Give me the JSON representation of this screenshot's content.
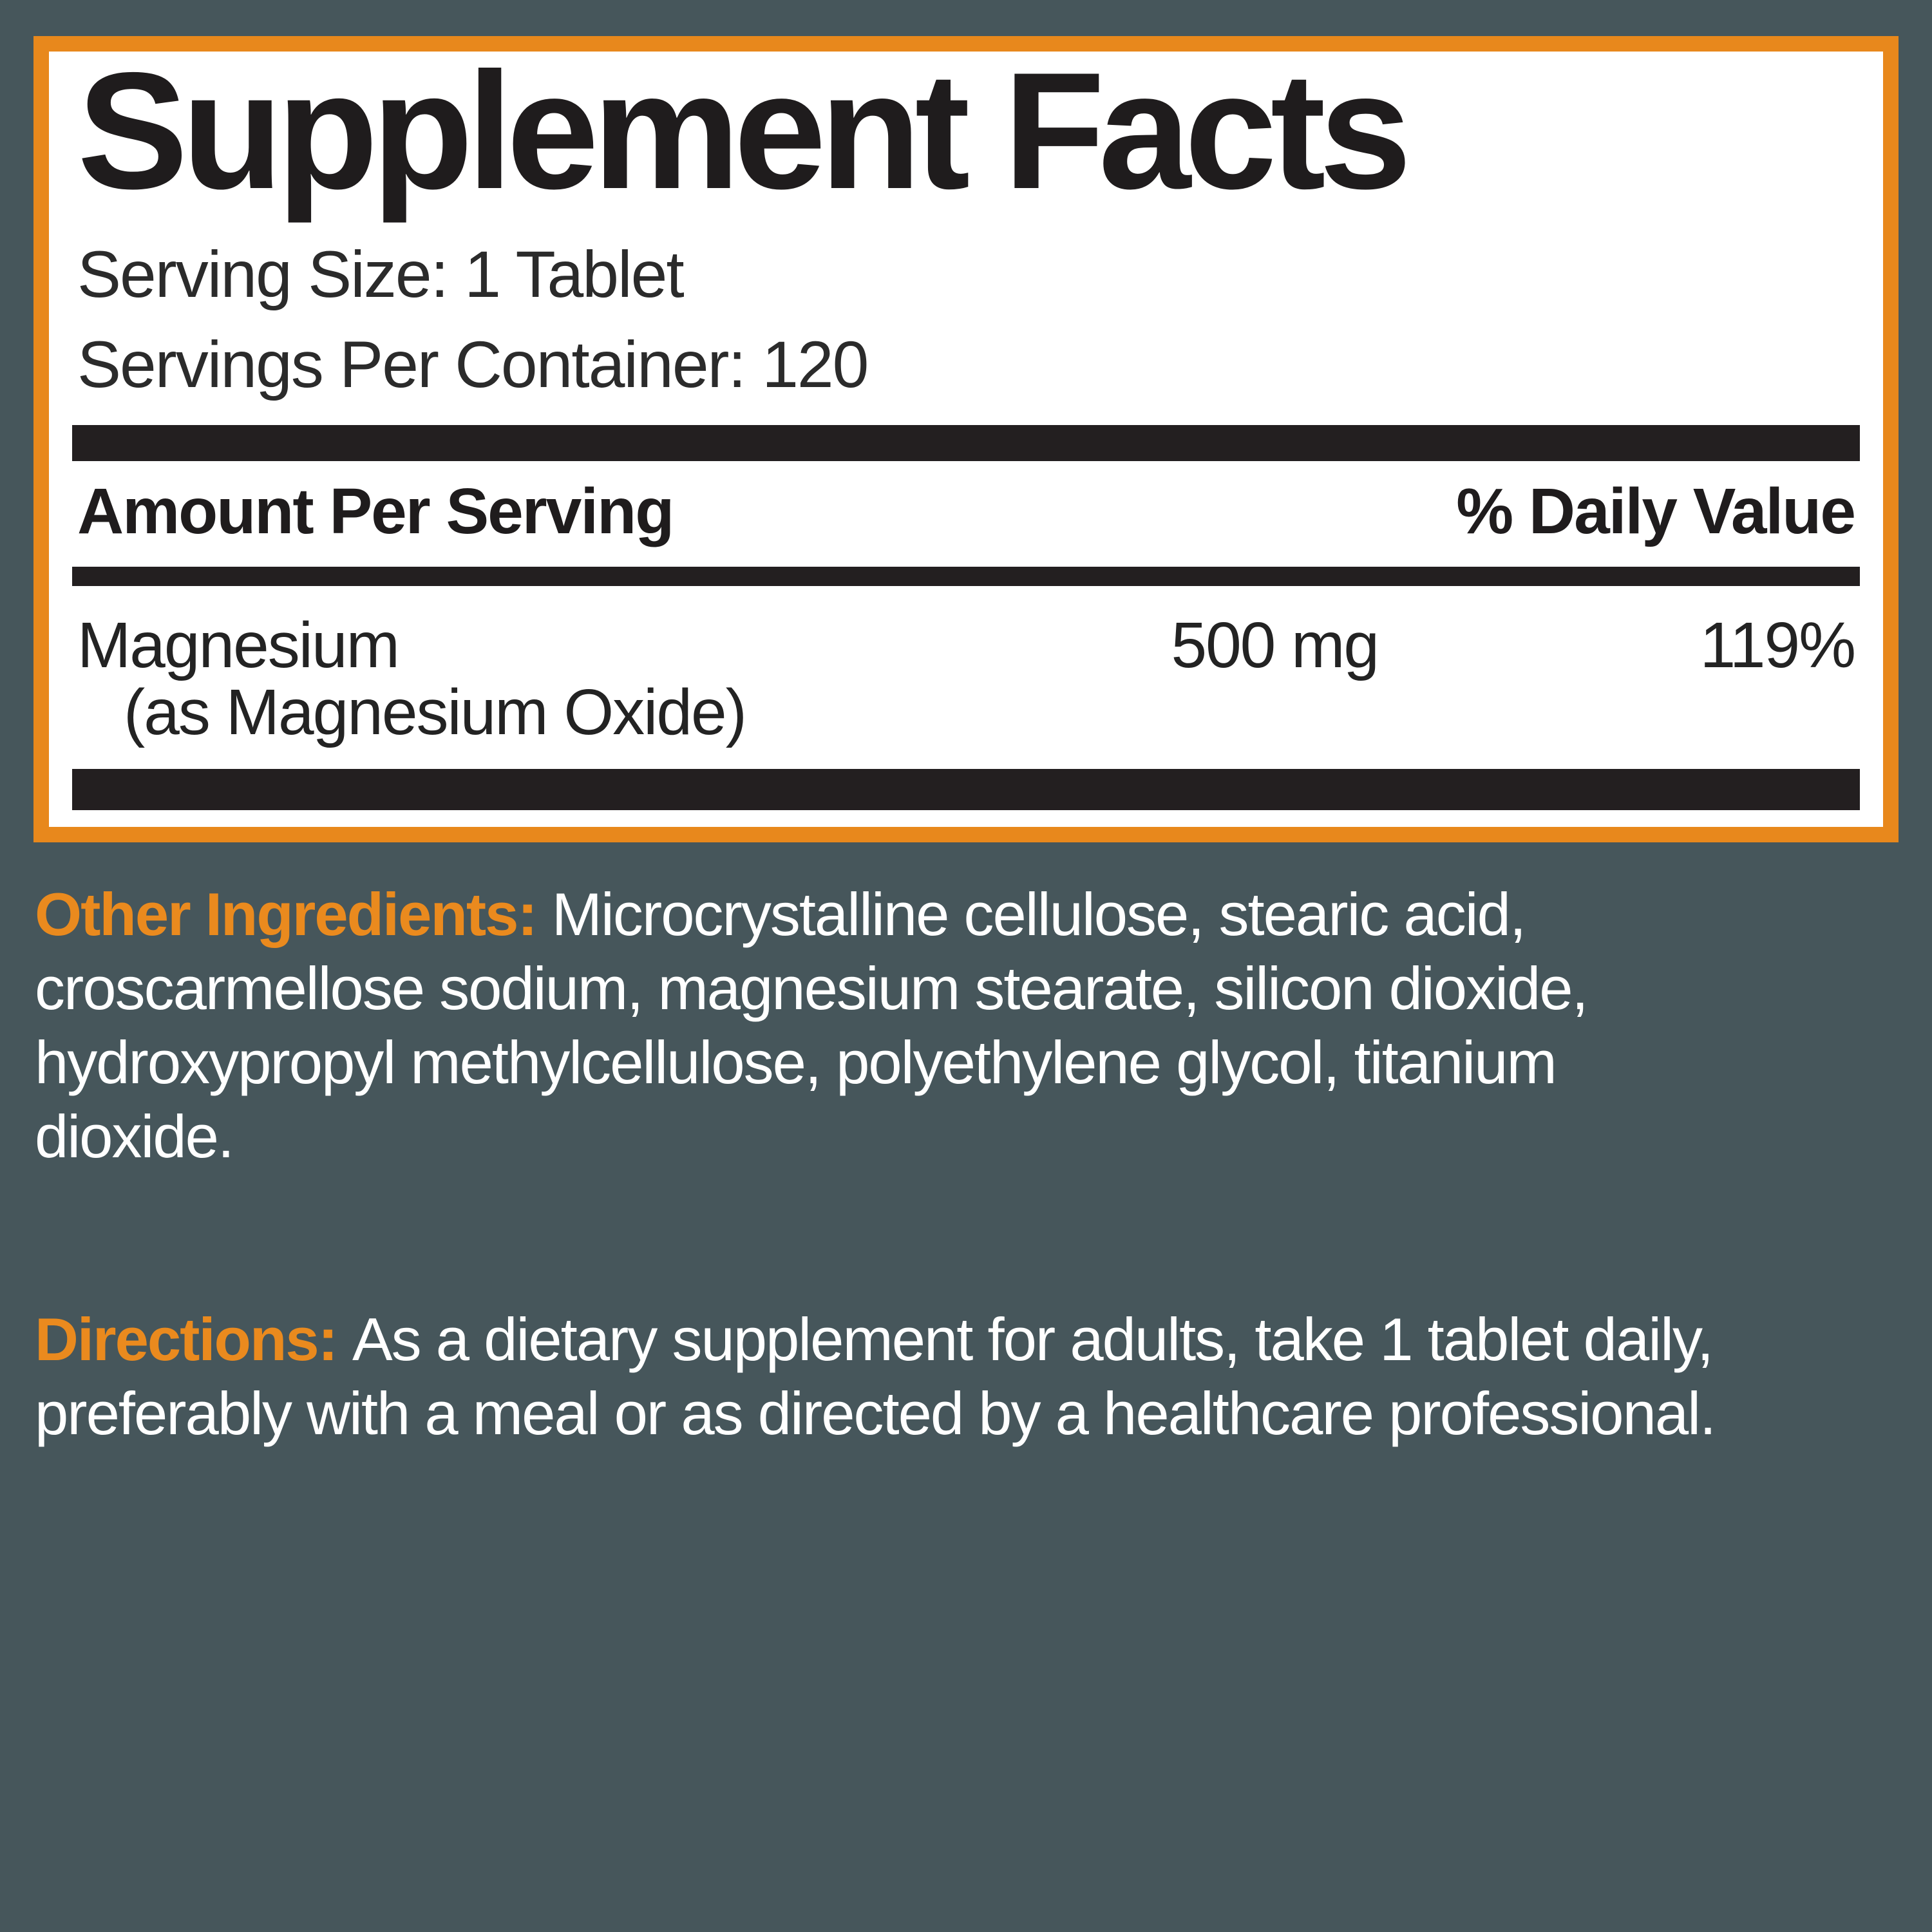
{
  "colors": {
    "background": "#46565B",
    "accent_orange": "#E8881C",
    "label_black": "#231F20",
    "panel_white": "#FFFFFF",
    "body_text_white": "#FFFFFF"
  },
  "panel": {
    "title": "Supplement Facts",
    "serving_size": "Serving Size: 1 Tablet",
    "servings_per_container": "Servings Per Container: 120",
    "columns": {
      "amount_header": "Amount Per Serving",
      "daily_value_header": "% Daily Value"
    },
    "rows": [
      {
        "name": "Magnesium",
        "detail": "(as Magnesium Oxide)",
        "amount": "500 mg",
        "daily_value": "119%"
      }
    ]
  },
  "other_ingredients": {
    "label": "Other Ingredients:",
    "lines": [
      "Microcrystalline cellulose, stearic acid,",
      "croscarmellose sodium, magnesium stearate, silicon dioxide,",
      "hydroxypropyl methylcellulose, polyethylene glycol, titanium",
      "dioxide."
    ]
  },
  "directions": {
    "label": "Directions:",
    "lines": [
      "As a dietary supplement for adults, take 1 tablet daily,",
      "preferably with a meal or as directed by a healthcare professional."
    ]
  }
}
